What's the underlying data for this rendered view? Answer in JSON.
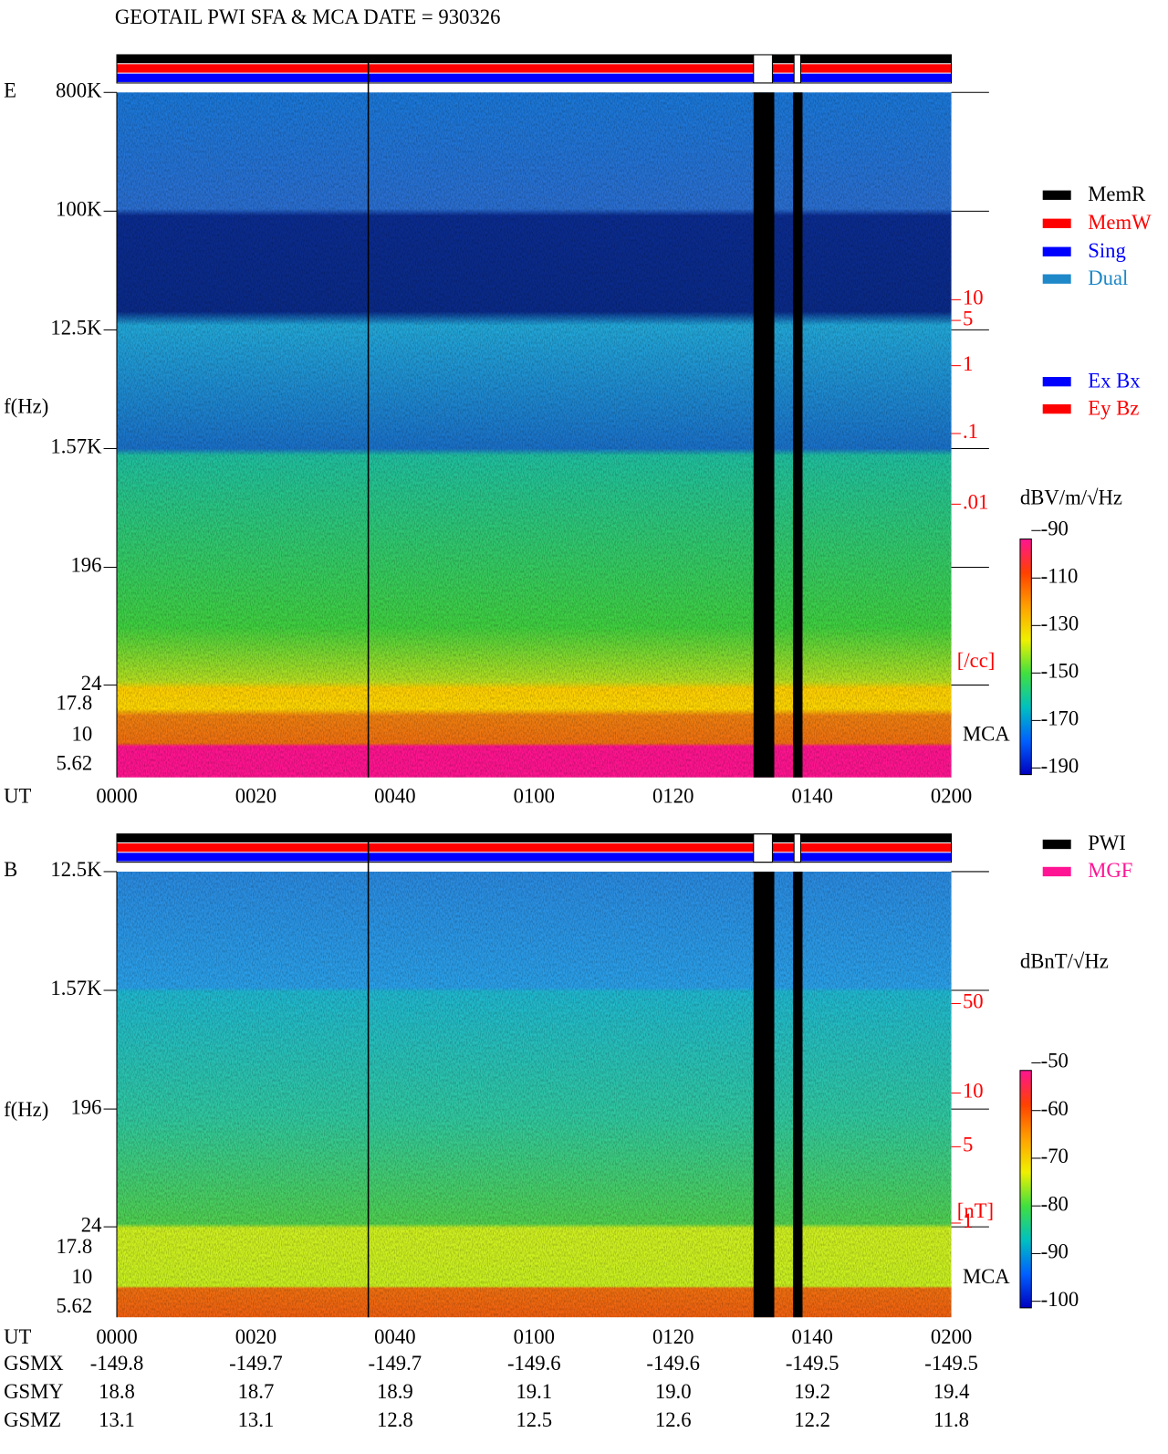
{
  "header": {
    "title": "GEOTAIL  PWI SFA & MCA   DATE = 930326"
  },
  "time_axis": {
    "label": "UT",
    "ticks": [
      "0000",
      "0020",
      "0040",
      "0100",
      "0120",
      "0140",
      "0200"
    ]
  },
  "panels": [
    {
      "label": "E",
      "axis_label": "f(Hz)",
      "freq_ticks": [
        "800K",
        "100K",
        "12.5K",
        "1.57K",
        "196",
        "24"
      ],
      "mca_ticks": [
        "17.8",
        "10",
        "5.62"
      ],
      "mca_label": "MCA",
      "right_ticks": [
        "10",
        "5",
        "1",
        ".1",
        ".01"
      ],
      "right_unit": "[/cc]",
      "colorbar": {
        "unit": "dBV/m/√Hz",
        "ticks": [
          -90,
          -110,
          -130,
          -150,
          -170,
          -190
        ]
      }
    },
    {
      "label": "B",
      "axis_label": "f(Hz)",
      "freq_ticks": [
        "12.5K",
        "1.57K",
        "196",
        "24"
      ],
      "mca_ticks": [
        "17.8",
        "10",
        "5.62"
      ],
      "mca_label": "MCA",
      "right_ticks": [
        "50",
        "10",
        "5",
        "1"
      ],
      "right_unit": "[nT]",
      "colorbar": {
        "unit": "dBnT/√Hz",
        "ticks": [
          -50,
          -60,
          -70,
          -80,
          -90,
          -100
        ]
      }
    }
  ],
  "legends": {
    "mode": [
      {
        "name": "MemR",
        "color": "#000000"
      },
      {
        "name": "MemW",
        "color": "#ff0000"
      },
      {
        "name": "Sing",
        "color": "#0000ff"
      },
      {
        "name": "Dual",
        "color": "#1e88c8"
      }
    ],
    "component": [
      {
        "name": "Ex Bx",
        "color": "#0000ff"
      },
      {
        "name": "Ey Bz",
        "color": "#ff0000"
      }
    ],
    "source": [
      {
        "name": "PWI",
        "color": "#000000"
      },
      {
        "name": "MGF",
        "color": "#ff1493"
      }
    ]
  },
  "orbit": [
    {
      "name": "GSMX",
      "values": [
        "-149.8",
        "-149.7",
        "-149.7",
        "-149.6",
        "-149.6",
        "-149.5",
        "-149.5"
      ]
    },
    {
      "name": "GSMY",
      "values": [
        "18.8",
        "18.7",
        "18.9",
        "19.1",
        "19.0",
        "19.2",
        "19.4"
      ]
    },
    {
      "name": "GSMZ",
      "values": [
        "13.1",
        "13.1",
        "12.8",
        "12.5",
        "12.6",
        "12.2",
        "11.8"
      ]
    }
  ]
}
